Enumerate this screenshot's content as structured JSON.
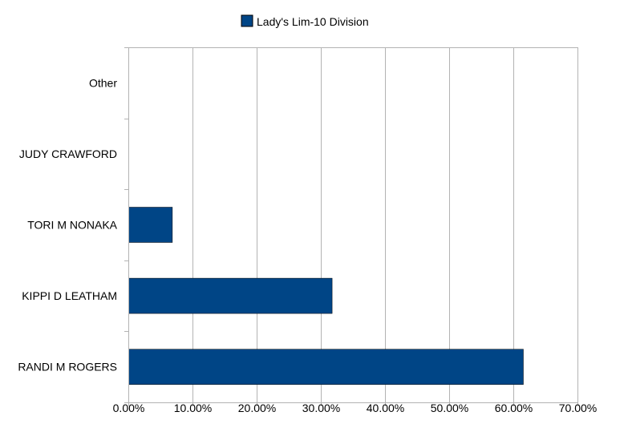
{
  "chart_data": {
    "type": "bar",
    "orientation": "horizontal",
    "title": "",
    "xlabel": "",
    "ylabel": "",
    "categories": [
      "Other",
      "JUDY CRAWFORD",
      "TORI M NONAKA",
      "KIPPI D LEATHAM",
      "RANDI M ROGERS"
    ],
    "series": [
      {
        "name": "Lady's Lim-10 Division",
        "color": "#004586",
        "values": [
          0.0,
          0.0,
          6.8,
          31.7,
          61.5
        ]
      }
    ],
    "xlim": [
      0,
      70
    ],
    "x_ticks": [
      "0.00%",
      "10.00%",
      "20.00%",
      "30.00%",
      "40.00%",
      "50.00%",
      "60.00%",
      "70.00%"
    ],
    "value_format": "percent",
    "grid": true,
    "legend_position": "top"
  }
}
